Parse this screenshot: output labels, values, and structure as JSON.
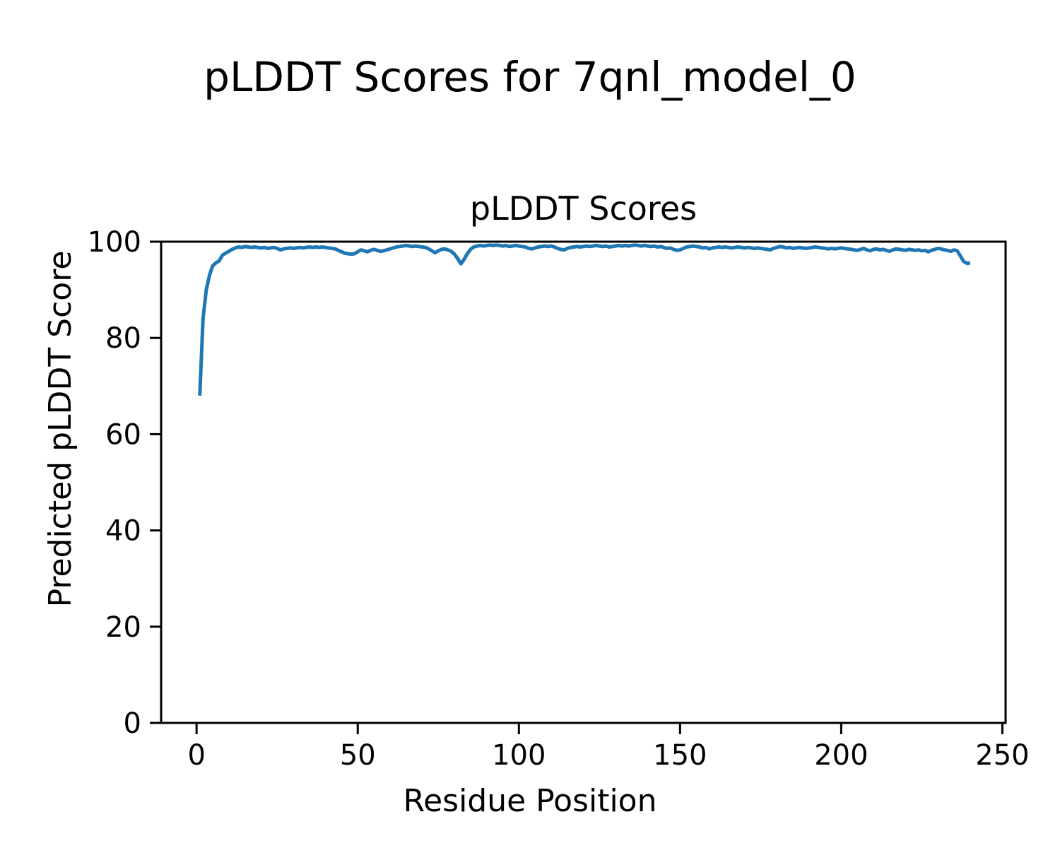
{
  "figure": {
    "suptitle": "pLDDT Scores for 7qnl_model_0"
  },
  "style": {
    "line_color": "#1f77b4",
    "axis_color": "#000000",
    "background": "#ffffff"
  },
  "chart_data": {
    "type": "line",
    "title": "pLDDT Scores",
    "xlabel": "Residue Position",
    "ylabel": "Predicted pLDDT Score",
    "xlim": [
      -11,
      251
    ],
    "ylim": [
      0,
      100
    ],
    "xticks": [
      0,
      50,
      100,
      150,
      200,
      250
    ],
    "yticks": [
      0,
      20,
      40,
      60,
      80,
      100
    ],
    "grid": false,
    "legend": "none",
    "series": [
      {
        "name": "pLDDT",
        "color": "#1f77b4",
        "line_width": 5,
        "x_start": 1,
        "x_step": 1,
        "y": [
          68.0,
          84.0,
          90.0,
          93.0,
          95.0,
          95.6,
          96.0,
          97.2,
          97.6,
          98.0,
          98.4,
          98.7,
          98.9,
          98.8,
          99.0,
          98.9,
          98.8,
          98.9,
          98.8,
          98.7,
          98.8,
          98.6,
          98.7,
          98.8,
          98.6,
          98.3,
          98.5,
          98.6,
          98.7,
          98.6,
          98.7,
          98.8,
          98.7,
          98.8,
          98.9,
          98.8,
          98.9,
          98.8,
          98.9,
          98.8,
          98.7,
          98.6,
          98.5,
          98.2,
          97.9,
          97.6,
          97.5,
          97.4,
          97.5,
          97.9,
          98.3,
          98.1,
          97.9,
          98.2,
          98.4,
          98.2,
          98.0,
          98.1,
          98.3,
          98.5,
          98.7,
          98.9,
          99.0,
          99.1,
          99.2,
          99.1,
          99.0,
          99.1,
          99.0,
          98.9,
          98.8,
          98.5,
          98.1,
          97.7,
          98.1,
          98.4,
          98.5,
          98.3,
          98.0,
          97.4,
          96.5,
          95.4,
          96.3,
          97.5,
          98.4,
          98.9,
          99.1,
          99.2,
          99.1,
          99.2,
          99.3,
          99.2,
          99.3,
          99.2,
          99.1,
          99.2,
          99.0,
          99.1,
          99.2,
          99.1,
          99.0,
          98.9,
          98.6,
          98.5,
          98.7,
          98.9,
          99.0,
          99.1,
          99.0,
          99.1,
          98.9,
          98.6,
          98.4,
          98.3,
          98.6,
          98.8,
          98.9,
          99.0,
          98.9,
          99.0,
          99.1,
          99.0,
          99.1,
          99.2,
          99.1,
          99.0,
          99.1,
          98.9,
          99.0,
          99.1,
          99.2,
          99.1,
          99.2,
          99.1,
          99.2,
          99.3,
          99.2,
          99.1,
          99.2,
          99.1,
          99.0,
          99.1,
          98.9,
          99.0,
          98.8,
          98.6,
          98.7,
          98.4,
          98.2,
          98.3,
          98.6,
          98.9,
          99.0,
          99.1,
          99.0,
          98.9,
          98.7,
          98.8,
          98.5,
          98.7,
          98.8,
          98.9,
          98.8,
          98.9,
          98.8,
          98.7,
          98.8,
          98.9,
          98.8,
          98.7,
          98.8,
          98.7,
          98.6,
          98.7,
          98.6,
          98.5,
          98.4,
          98.3,
          98.6,
          98.8,
          99.0,
          98.9,
          98.7,
          98.8,
          98.6,
          98.7,
          98.8,
          98.7,
          98.6,
          98.7,
          98.8,
          98.9,
          98.8,
          98.7,
          98.6,
          98.5,
          98.6,
          98.5,
          98.6,
          98.7,
          98.6,
          98.5,
          98.4,
          98.3,
          98.2,
          98.4,
          98.6,
          98.3,
          98.1,
          98.4,
          98.5,
          98.3,
          98.4,
          98.2,
          98.0,
          98.3,
          98.5,
          98.4,
          98.3,
          98.2,
          98.4,
          98.3,
          98.2,
          98.3,
          98.1,
          98.2,
          97.9,
          98.2,
          98.4,
          98.6,
          98.5,
          98.3,
          98.2,
          98.0,
          98.3,
          98.1,
          97.0,
          95.9,
          95.5,
          95.6
        ]
      }
    ]
  }
}
